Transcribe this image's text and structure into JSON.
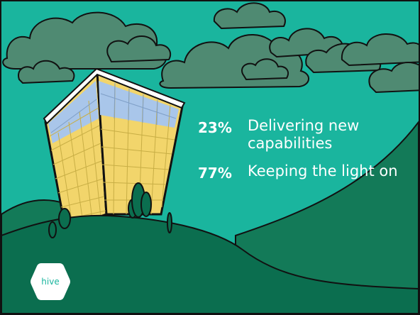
{
  "stats": [
    {
      "percent": "23%",
      "label": "Delivering new capabilities"
    },
    {
      "percent": "77%",
      "label": "Keeping the light on"
    }
  ],
  "logo": {
    "text": "hive"
  },
  "colors": {
    "background": "#1ab59e",
    "hills_dark": "#0b6e4f",
    "hills_mid": "#137a58",
    "clouds": "#4f8a72",
    "building_yellow": "#f2d56b",
    "building_blue": "#a9c6ea",
    "text": "#ffffff"
  },
  "icons": [
    "cloud-icon",
    "building-icon",
    "tree-icon",
    "hexagon-logo-icon"
  ]
}
